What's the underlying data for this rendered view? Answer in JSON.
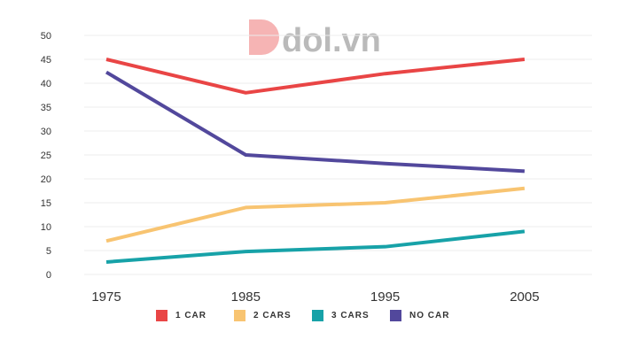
{
  "logo": {
    "text": "dol.vn"
  },
  "chart_data": {
    "type": "line",
    "title": "",
    "xlabel": "",
    "ylabel": "",
    "x": [
      "1975",
      "1985",
      "1995",
      "2005"
    ],
    "ylim": [
      0,
      50
    ],
    "yticks": [
      0,
      5,
      10,
      15,
      20,
      25,
      30,
      35,
      40,
      45,
      50
    ],
    "grid": true,
    "legend_position": "bottom",
    "series": [
      {
        "name": "1 CAR",
        "color": "#e94545",
        "values": [
          45,
          38,
          42,
          45
        ]
      },
      {
        "name": "2 CARS",
        "color": "#f8c471",
        "values": [
          7,
          14,
          15,
          18
        ]
      },
      {
        "name": "3 CARS",
        "color": "#17a2a8",
        "values": [
          2.6,
          4.8,
          5.8,
          9
        ]
      },
      {
        "name": "NO CAR",
        "color": "#52489c",
        "values": [
          42.3,
          25,
          23.2,
          21.6
        ]
      }
    ]
  }
}
